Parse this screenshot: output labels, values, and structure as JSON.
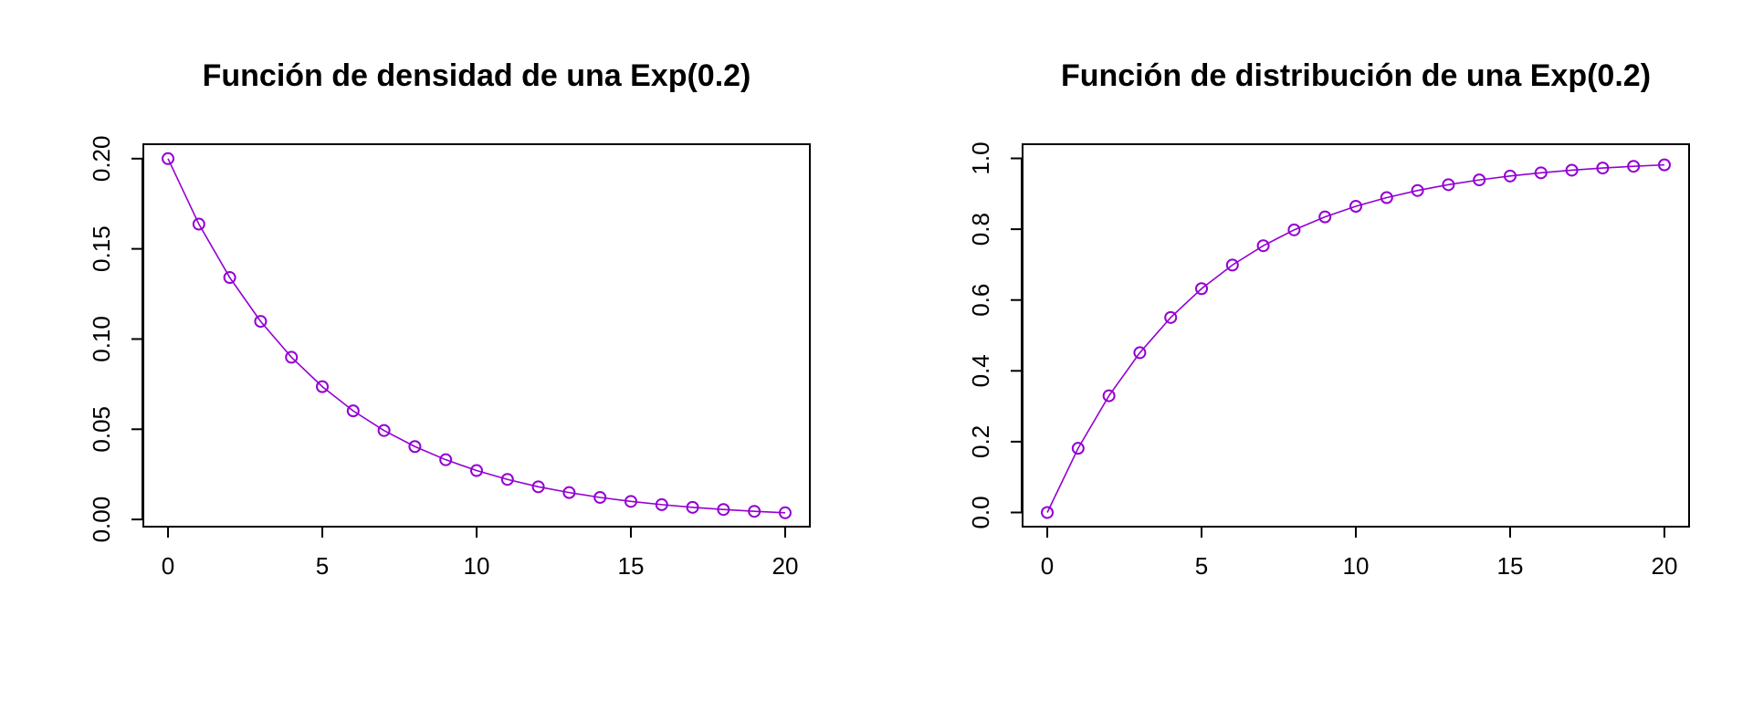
{
  "colors": {
    "series": "#9400D3",
    "axis": "#000000",
    "background": "#ffffff"
  },
  "chart_data": [
    {
      "type": "line",
      "markers": "open-circle",
      "title": "Función de densidad de una Exp(0.2)",
      "xlabel": "",
      "ylabel": "",
      "x": [
        0,
        1,
        2,
        3,
        4,
        5,
        6,
        7,
        8,
        9,
        10,
        11,
        12,
        13,
        14,
        15,
        16,
        17,
        18,
        19,
        20
      ],
      "series": [
        {
          "values": [
            0.2,
            0.1637,
            0.1341,
            0.1098,
            0.0899,
            0.0736,
            0.0602,
            0.0493,
            0.0404,
            0.0331,
            0.0271,
            0.0222,
            0.0181,
            0.0149,
            0.0122,
            0.01,
            0.0082,
            0.0067,
            0.0055,
            0.0045,
            0.0037
          ]
        }
      ],
      "xlim": [
        -0.8,
        20.8
      ],
      "ylim": [
        -0.004,
        0.208
      ],
      "xticks": [
        0,
        5,
        10,
        15,
        20
      ],
      "xtick_labels": [
        "0",
        "5",
        "10",
        "15",
        "20"
      ],
      "yticks": [
        0,
        0.05,
        0.1,
        0.15,
        0.2
      ],
      "ytick_labels": [
        "0.00",
        "0.05",
        "0.10",
        "0.15",
        "0.20"
      ],
      "grid": false,
      "legend": "none"
    },
    {
      "type": "line",
      "markers": "open-circle",
      "title": "Función de distribución de una Exp(0.2)",
      "xlabel": "",
      "ylabel": "",
      "x": [
        0,
        1,
        2,
        3,
        4,
        5,
        6,
        7,
        8,
        9,
        10,
        11,
        12,
        13,
        14,
        15,
        16,
        17,
        18,
        19,
        20
      ],
      "series": [
        {
          "values": [
            0,
            0.1813,
            0.3297,
            0.4512,
            0.5507,
            0.6321,
            0.6988,
            0.7534,
            0.7981,
            0.8347,
            0.8647,
            0.8892,
            0.9093,
            0.9257,
            0.9392,
            0.9502,
            0.9592,
            0.9666,
            0.9727,
            0.9776,
            0.9817
          ]
        }
      ],
      "xlim": [
        -0.8,
        20.8
      ],
      "ylim": [
        -0.04,
        1.04
      ],
      "xticks": [
        0,
        5,
        10,
        15,
        20
      ],
      "xtick_labels": [
        "0",
        "5",
        "10",
        "15",
        "20"
      ],
      "yticks": [
        0,
        0.2,
        0.4,
        0.6,
        0.8,
        1.0
      ],
      "ytick_labels": [
        "0.0",
        "0.2",
        "0.4",
        "0.6",
        "0.8",
        "1.0"
      ],
      "grid": false,
      "legend": "none"
    }
  ]
}
